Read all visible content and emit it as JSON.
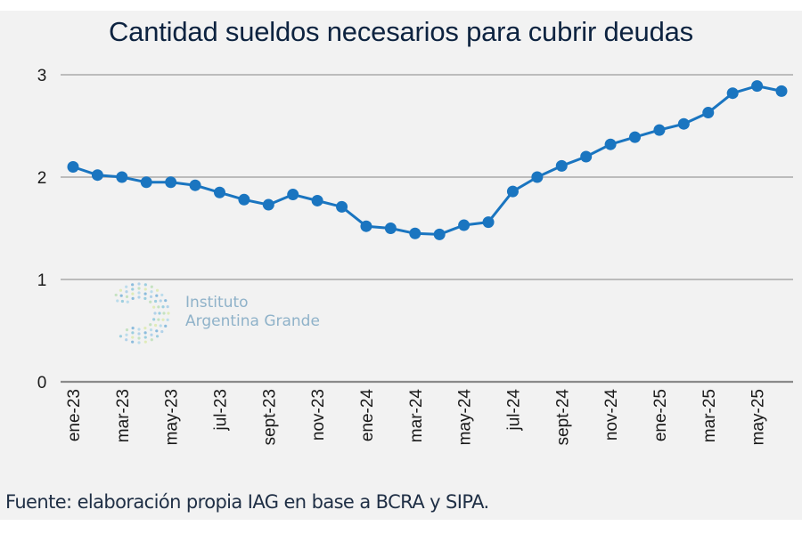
{
  "chart_data": {
    "type": "line",
    "title": "Cantidad sueldos necesarios para cubrir deudas",
    "xlabel": "",
    "ylabel": "",
    "ylim": [
      0,
      3
    ],
    "yticks": [
      0,
      1,
      2,
      3
    ],
    "grid": true,
    "legend": "none",
    "x": [
      "ene-23",
      "feb-23",
      "mar-23",
      "abr-23",
      "may-23",
      "jun-23",
      "jul-23",
      "ago-23",
      "sept-23",
      "oct-23",
      "nov-23",
      "dic-23",
      "ene-24",
      "feb-24",
      "mar-24",
      "abr-24",
      "may-24",
      "jun-24",
      "jul-24",
      "ago-24",
      "sept-24",
      "oct-24",
      "nov-24",
      "dic-24",
      "ene-25",
      "feb-25",
      "mar-25",
      "abr-25",
      "may-25",
      "jun-25"
    ],
    "xtick_labels": [
      "ene-23",
      "mar-23",
      "may-23",
      "jul-23",
      "sept-23",
      "nov-23",
      "ene-24",
      "mar-24",
      "may-24",
      "jul-24",
      "sept-24",
      "nov-24",
      "ene-25",
      "mar-25",
      "may-25"
    ],
    "series": [
      {
        "name": "Cantidad sueldos",
        "color": "#1a75c0",
        "values": [
          2.1,
          2.02,
          2.0,
          1.95,
          1.95,
          1.92,
          1.85,
          1.78,
          1.73,
          1.83,
          1.77,
          1.71,
          1.52,
          1.5,
          1.45,
          1.44,
          1.53,
          1.56,
          1.86,
          2.0,
          2.11,
          2.2,
          2.32,
          2.39,
          2.46,
          2.52,
          2.63,
          2.82,
          2.89,
          2.84
        ]
      }
    ],
    "source": "Fuente: elaboración propia IAG en base a BCRA y SIPA.",
    "watermark": {
      "line1": "Instituto",
      "line2": "Argentina Grande"
    }
  }
}
